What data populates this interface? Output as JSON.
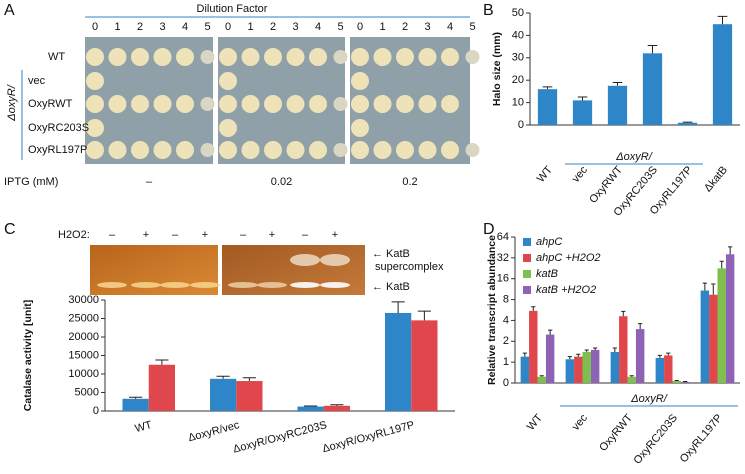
{
  "panel_a": {
    "label": "A",
    "header": "Dilution Factor",
    "plates": [
      {
        "dilutions": [
          0,
          1,
          2,
          3,
          4,
          5
        ],
        "iptg": "–"
      },
      {
        "dilutions": [
          0,
          1,
          2,
          3,
          4,
          5
        ],
        "iptg": 0.02
      },
      {
        "dilutions": [
          0,
          1,
          2,
          3,
          4,
          5
        ],
        "iptg": 0.2
      }
    ],
    "strains": [
      "WT",
      "vec",
      "OxyRWT",
      "OxyRC203S",
      "OxyRL197P"
    ],
    "group_label": "ΔoxyR/",
    "iptg_label": "IPTG (mM)"
  },
  "panel_c_gel": {
    "h2o2_label": "H2O2:",
    "treatments": [
      "–",
      "+",
      "–",
      "+",
      "–",
      "+",
      "–",
      "+"
    ],
    "supercomplex_label": [
      "KatB",
      "supercomplex"
    ],
    "band_label": "KatB"
  },
  "chart_data": [
    {
      "type": "bar",
      "panel": "B",
      "y_label": "Halo size (mm)",
      "categories": [
        "WT",
        "vec",
        "OxyRWT",
        "OxyRC203S",
        "OxyRL197P",
        "ΔkatB"
      ],
      "values": [
        16,
        11,
        17.5,
        32,
        1,
        45
      ],
      "errors": [
        1,
        1.5,
        1.5,
        3.5,
        0.3,
        3.5
      ],
      "color": "#2e86c8",
      "group_label": "ΔoxyR/",
      "ylim": [
        0,
        50
      ],
      "yticks": [
        0,
        10,
        20,
        30,
        40,
        50
      ]
    },
    {
      "type": "bar",
      "panel": "C",
      "y_label": "Catalase activity [unit]",
      "categories": [
        "WT",
        "ΔoxyR/vec",
        "ΔoxyR/OxyRC203S",
        "ΔoxyR/OxyRL197P"
      ],
      "series": [
        {
          "color": "#2e86c8",
          "values": [
            3300,
            8700,
            1200,
            26500
          ],
          "errors": [
            400,
            700,
            150,
            3000
          ]
        },
        {
          "color": "#e0474c",
          "values": [
            12500,
            8100,
            1400,
            24500
          ],
          "errors": [
            1300,
            900,
            300,
            2500
          ]
        }
      ],
      "ylim": [
        0,
        30000
      ],
      "yticks": [
        0,
        5000,
        10000,
        15000,
        20000,
        25000,
        30000
      ]
    },
    {
      "type": "bar",
      "panel": "D",
      "y_label": "Relative transcript abundance",
      "yscale": "symlog2",
      "categories": [
        "WT",
        "vec",
        "OxyRWT",
        "OxyRC203S",
        "OxyRL197P"
      ],
      "group_label": "ΔoxyR/",
      "legend": "top-left",
      "series": [
        {
          "name": "ahpC",
          "color": "#2e86c8",
          "values": [
            1.2,
            1.1,
            1.4,
            1.15,
            10.8
          ],
          "errors": [
            0.15,
            0.1,
            0.2,
            0.1,
            3
          ]
        },
        {
          "name": "ahpC +H2O2",
          "color": "#e0474c",
          "values": [
            5.5,
            1.2,
            4.6,
            1.25,
            9.4
          ],
          "errors": [
            0.8,
            0.1,
            0.8,
            0.1,
            4
          ]
        },
        {
          "name": "katB",
          "color": "#7fbf4d",
          "values": [
            0.3,
            1.4,
            0.3,
            0.1,
            22.6
          ],
          "errors": [
            0.05,
            0.1,
            0.05,
            0.02,
            6
          ]
        },
        {
          "name": "katB +H2O2",
          "color": "#8e63b5",
          "values": [
            2.5,
            1.5,
            3,
            0.05,
            36
          ],
          "errors": [
            0.4,
            0.1,
            0.6,
            0.02,
            10
          ]
        }
      ],
      "ylim": [
        0,
        64
      ],
      "yticks": [
        0,
        1,
        2,
        4,
        8,
        16,
        32,
        64
      ]
    }
  ]
}
